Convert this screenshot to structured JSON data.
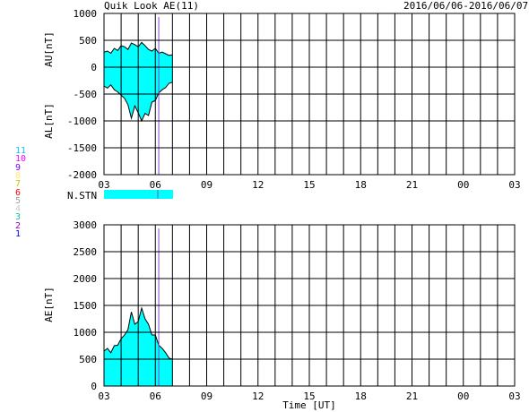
{
  "header": {
    "title": "Quik Look AE(11)",
    "date_range": "2016/06/06-2016/06/07"
  },
  "station_legend": {
    "items": [
      {
        "label": "11",
        "color": "#00c8ff"
      },
      {
        "label": "10",
        "color": "#ff00ff"
      },
      {
        "label": "9",
        "color": "#7f00ff"
      },
      {
        "label": "8",
        "color": "#ffe680"
      },
      {
        "label": "7",
        "color": "#c8c800"
      },
      {
        "label": "6",
        "color": "#ff0000"
      },
      {
        "label": "5",
        "color": "#a0a0a0"
      },
      {
        "label": "4",
        "color": "#c8c8c8"
      },
      {
        "label": "3",
        "color": "#00c8a0"
      },
      {
        "label": "2",
        "color": "#9900cc"
      },
      {
        "label": "1",
        "color": "#0000ff"
      }
    ]
  },
  "nstn": {
    "label": "N.STN",
    "fill_color": "#00ffff",
    "marker_color": "#7a4cd6"
  },
  "colors": {
    "fill": "#00ffff",
    "grid": "#000000",
    "marker": "#7a4cd6"
  },
  "chart_data": [
    {
      "type": "area",
      "title": "",
      "ylabel_top": "AU[nT]",
      "ylabel_bottom": "AL[nT]",
      "xlabel": "",
      "xlim": [
        3,
        27
      ],
      "ylim": [
        -2000,
        1000
      ],
      "xticks": [
        "03",
        "06",
        "09",
        "12",
        "15",
        "18",
        "21",
        "00",
        "03"
      ],
      "yticks": [
        "1000",
        "500",
        "0",
        "-500",
        "-1000",
        "-1500",
        "-2000"
      ],
      "grid": true,
      "x": [
        3.0,
        3.2,
        3.4,
        3.6,
        3.8,
        4.0,
        4.2,
        4.4,
        4.6,
        4.8,
        5.0,
        5.2,
        5.4,
        5.6,
        5.8,
        6.0,
        6.2,
        6.4,
        6.6,
        6.8,
        7.0
      ],
      "series": [
        {
          "values": [
            280,
            300,
            260,
            350,
            310,
            400,
            380,
            330,
            450,
            420,
            380,
            460,
            400,
            330,
            300,
            350,
            260,
            280,
            250,
            220,
            230
          ]
        },
        {
          "values": [
            -350,
            -390,
            -330,
            -420,
            -460,
            -520,
            -580,
            -700,
            -950,
            -720,
            -850,
            -1000,
            -860,
            -900,
            -650,
            -620,
            -480,
            -420,
            -380,
            -300,
            -280
          ]
        }
      ]
    },
    {
      "type": "area",
      "title": "",
      "ylabel": "AE[nT]",
      "xlabel": "Time [UT]",
      "xlim": [
        3,
        27
      ],
      "ylim": [
        0,
        3000
      ],
      "xticks": [
        "03",
        "06",
        "09",
        "12",
        "15",
        "18",
        "21",
        "00",
        "03"
      ],
      "yticks": [
        "3000",
        "2500",
        "2000",
        "1500",
        "1000",
        "500",
        "0"
      ],
      "grid": true,
      "x": [
        3.0,
        3.2,
        3.4,
        3.6,
        3.8,
        4.0,
        4.2,
        4.4,
        4.6,
        4.8,
        5.0,
        5.2,
        5.4,
        5.6,
        5.8,
        6.0,
        6.2,
        6.4,
        6.6,
        6.8,
        7.0
      ],
      "values": [
        650,
        700,
        620,
        750,
        760,
        880,
        950,
        1050,
        1380,
        1150,
        1200,
        1450,
        1250,
        1150,
        950,
        950,
        760,
        700,
        620,
        520,
        500
      ]
    }
  ]
}
